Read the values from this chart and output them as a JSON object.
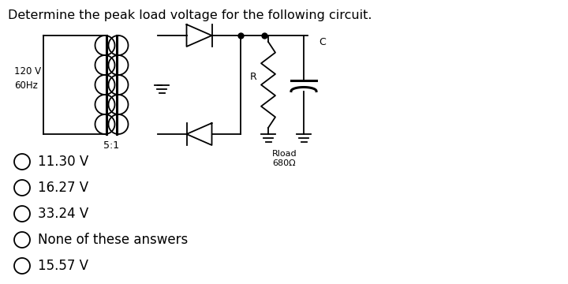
{
  "title": "Determine the peak load voltage for the following circuit.",
  "title_fontsize": 11.5,
  "background_color": "#ffffff",
  "options": [
    "11.30 V",
    "16.27 V",
    "33.24 V",
    "None of these answers",
    "15.57 V"
  ],
  "options_fontsize": 12,
  "source_label_1": "120 V",
  "source_label_2": "60Hz",
  "transformer_ratio": "5:1",
  "rload_label": "Rload",
  "rload_value": "680Ω",
  "r_label": "R",
  "c_label": "C"
}
